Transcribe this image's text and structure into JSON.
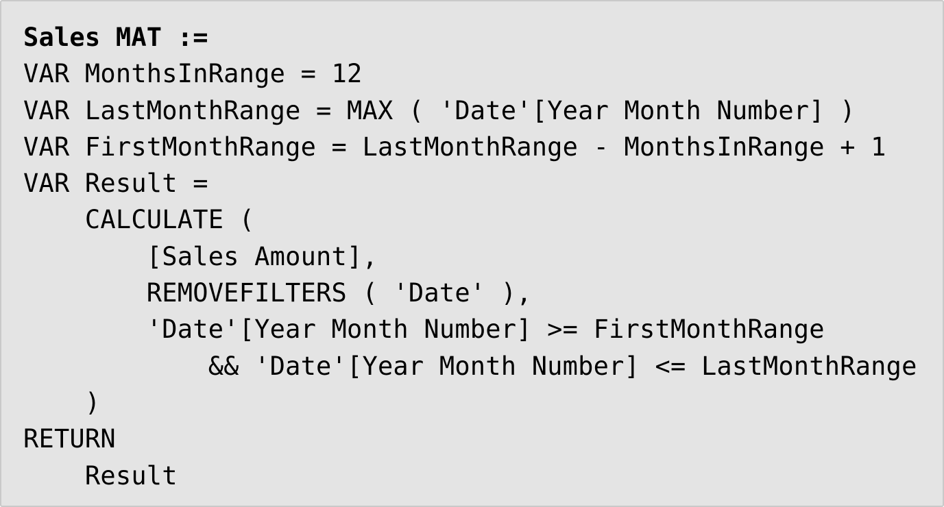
{
  "code": {
    "lines": [
      "Sales MAT :=",
      "VAR MonthsInRange = 12",
      "VAR LastMonthRange = MAX ( 'Date'[Year Month Number] )",
      "VAR FirstMonthRange = LastMonthRange - MonthsInRange + 1",
      "VAR Result =",
      "    CALCULATE (",
      "        [Sales Amount],",
      "        REMOVEFILTERS ( 'Date' ),",
      "        'Date'[Year Month Number] >= FirstMonthRange",
      "            && 'Date'[Year Month Number] <= LastMonthRange",
      "    )",
      "RETURN",
      "    Result"
    ]
  }
}
